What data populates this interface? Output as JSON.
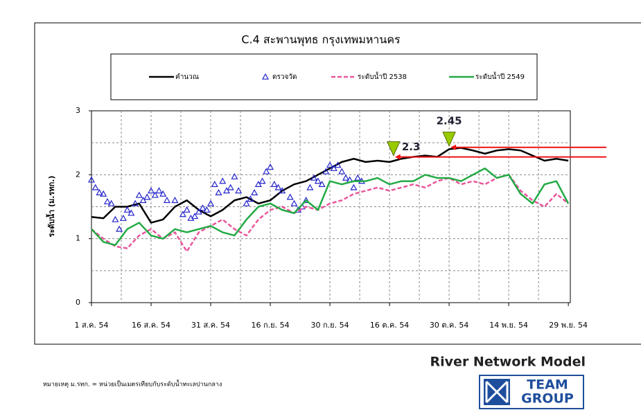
{
  "chart_data": {
    "type": "line",
    "title": "C.4 สะพานพุทธ กรุงเทพมหานคร",
    "y_label": "ระดับน้ำ (ม.รทก.)",
    "xlim": [
      0,
      120.5
    ],
    "ylim": [
      0,
      3
    ],
    "yticks": [
      0,
      1,
      2,
      3
    ],
    "ygrid": [
      0.5,
      1,
      1.5,
      2,
      2.5
    ],
    "xgrid": [
      7.5,
      15,
      22.5,
      30,
      37.5,
      45,
      52.5,
      60,
      67.5,
      75,
      82.5,
      90,
      97.5,
      105,
      112.5
    ],
    "xticks": [
      {
        "value": 0,
        "label": "1 ส.ค. 54"
      },
      {
        "value": 15,
        "label": "16 ส.ค. 54"
      },
      {
        "value": 30,
        "label": "31 ส.ค. 54"
      },
      {
        "value": 45,
        "label": "16 ก.ย. 54"
      },
      {
        "value": 60,
        "label": "30 ก.ย. 54"
      },
      {
        "value": 75,
        "label": "16 ต.ค. 54"
      },
      {
        "value": 90,
        "label": "30 ต.ค. 54"
      },
      {
        "value": 105,
        "label": "14 พ.ย. 54"
      },
      {
        "value": 120,
        "label": "29 พ.ย. 54"
      }
    ],
    "grid": true,
    "x": [
      0,
      3,
      6,
      9,
      12,
      15,
      18,
      21,
      24,
      27,
      30,
      33,
      36,
      39,
      42,
      45,
      48,
      51,
      54,
      57,
      60,
      63,
      66,
      69,
      72,
      75,
      78,
      81,
      84,
      87,
      90,
      93,
      96,
      99,
      102,
      105,
      108,
      111,
      114,
      117,
      120
    ],
    "series": [
      {
        "name": "คำนวณ",
        "color": "#000000",
        "values": [
          1.34,
          1.32,
          1.5,
          1.5,
          1.55,
          1.25,
          1.3,
          1.5,
          1.6,
          1.45,
          1.35,
          1.45,
          1.6,
          1.65,
          1.55,
          1.6,
          1.75,
          1.85,
          1.9,
          2.0,
          2.1,
          2.2,
          2.25,
          2.2,
          2.22,
          2.2,
          2.25,
          2.28,
          2.3,
          2.28,
          2.4,
          2.42,
          2.38,
          2.33,
          2.38,
          2.4,
          2.38,
          2.3,
          2.22,
          2.25,
          2.22
        ]
      },
      {
        "name": "ตรวจวัด",
        "color": "#2222cc",
        "marker": "triangle",
        "x": [
          0,
          1,
          2,
          3,
          4,
          5,
          6,
          7,
          8,
          9,
          10,
          11,
          12,
          13,
          14,
          15,
          16,
          17,
          18,
          19,
          21,
          23,
          24,
          25,
          26,
          27,
          28,
          29,
          30,
          31,
          32,
          33,
          34,
          35,
          36,
          37,
          39,
          40,
          41,
          42,
          43,
          44,
          45,
          46,
          47,
          48,
          50,
          51,
          52,
          53,
          54,
          55,
          56,
          57,
          58,
          59,
          60,
          61,
          62,
          63,
          64,
          65,
          66,
          67,
          68
        ],
        "values": [
          1.92,
          1.8,
          1.72,
          1.7,
          1.58,
          1.55,
          1.3,
          1.15,
          1.32,
          1.45,
          1.4,
          1.55,
          1.68,
          1.6,
          1.65,
          1.75,
          1.68,
          1.75,
          1.7,
          1.6,
          1.6,
          1.38,
          1.45,
          1.32,
          1.35,
          1.42,
          1.48,
          1.45,
          1.55,
          1.85,
          1.72,
          1.9,
          1.75,
          1.8,
          1.97,
          1.75,
          1.55,
          1.62,
          1.72,
          1.85,
          1.9,
          2.05,
          2.12,
          1.85,
          1.8,
          1.75,
          1.65,
          1.55,
          1.45,
          1.5,
          1.6,
          1.8,
          1.95,
          1.9,
          1.85,
          2.05,
          2.15,
          2.1,
          2.15,
          2.05,
          1.95,
          1.92,
          1.8,
          1.95,
          1.9
        ]
      },
      {
        "name": "ระดับน้ำปี 2538",
        "color": "#e8559a",
        "dashed": true,
        "values": [
          1.15,
          1.0,
          0.88,
          0.85,
          1.05,
          1.15,
          1.0,
          1.1,
          0.8,
          1.1,
          1.2,
          1.3,
          1.15,
          1.05,
          1.3,
          1.45,
          1.5,
          1.4,
          1.5,
          1.45,
          1.55,
          1.6,
          1.7,
          1.75,
          1.8,
          1.75,
          1.8,
          1.85,
          1.8,
          1.9,
          1.95,
          1.85,
          1.9,
          1.85,
          1.95,
          2.0,
          1.75,
          1.6,
          1.5,
          1.7,
          1.55
        ]
      },
      {
        "name": "ระดับน้ำปี 2549",
        "color": "#22aa44",
        "values": [
          1.15,
          0.95,
          0.9,
          1.15,
          1.25,
          1.05,
          1.0,
          1.15,
          1.1,
          1.15,
          1.2,
          1.1,
          1.05,
          1.3,
          1.5,
          1.55,
          1.45,
          1.4,
          1.6,
          1.45,
          1.9,
          1.85,
          1.9,
          1.9,
          1.95,
          1.85,
          1.9,
          1.9,
          2.0,
          1.95,
          1.95,
          1.9,
          2.0,
          2.1,
          1.95,
          2.0,
          1.7,
          1.55,
          1.85,
          1.9,
          1.55
        ]
      }
    ],
    "annotations": [
      {
        "text": "2.3",
        "x": 76,
        "y": 2.3,
        "color": "#99cc00"
      },
      {
        "text": "2.45",
        "x": 90,
        "y": 2.45,
        "color": "#99cc00"
      }
    ],
    "arrow_color": "#ee1111"
  },
  "footer": {
    "model": "River Network Model",
    "note": "หมายเหตุ  ม.รทก. = หน่วยเป็นเมตรเทียบกับระดับน้ำทะเลปานกลาง",
    "logo_top": "TEAM",
    "logo_bottom": "GROUP"
  }
}
